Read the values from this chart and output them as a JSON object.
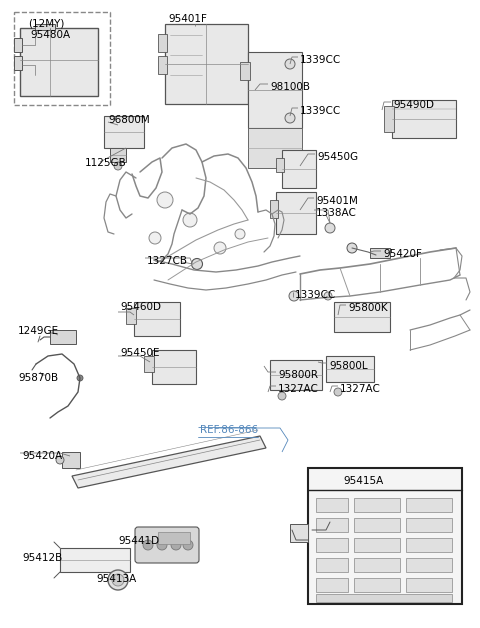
{
  "bg_color": "#ffffff",
  "fig_w": 4.8,
  "fig_h": 6.28,
  "dpi": 100,
  "labels": [
    {
      "text": "(12MY)",
      "xp": 28,
      "yp": 18,
      "fs": 7.5,
      "color": "#000000",
      "ha": "left",
      "style": "normal"
    },
    {
      "text": "95480A",
      "xp": 50,
      "yp": 30,
      "fs": 7.5,
      "color": "#000000",
      "ha": "center",
      "style": "normal"
    },
    {
      "text": "96800M",
      "xp": 108,
      "yp": 115,
      "fs": 7.5,
      "color": "#000000",
      "ha": "left",
      "style": "normal"
    },
    {
      "text": "1125GB",
      "xp": 85,
      "yp": 158,
      "fs": 7.5,
      "color": "#000000",
      "ha": "left",
      "style": "normal"
    },
    {
      "text": "95401F",
      "xp": 168,
      "yp": 14,
      "fs": 7.5,
      "color": "#000000",
      "ha": "left",
      "style": "normal"
    },
    {
      "text": "1339CC",
      "xp": 300,
      "yp": 55,
      "fs": 7.5,
      "color": "#000000",
      "ha": "left",
      "style": "normal"
    },
    {
      "text": "98100B",
      "xp": 270,
      "yp": 82,
      "fs": 7.5,
      "color": "#000000",
      "ha": "left",
      "style": "normal"
    },
    {
      "text": "1339CC",
      "xp": 300,
      "yp": 106,
      "fs": 7.5,
      "color": "#000000",
      "ha": "left",
      "style": "normal"
    },
    {
      "text": "95450G",
      "xp": 317,
      "yp": 152,
      "fs": 7.5,
      "color": "#000000",
      "ha": "left",
      "style": "normal"
    },
    {
      "text": "95490D",
      "xp": 393,
      "yp": 100,
      "fs": 7.5,
      "color": "#000000",
      "ha": "left",
      "style": "normal"
    },
    {
      "text": "95401M",
      "xp": 316,
      "yp": 196,
      "fs": 7.5,
      "color": "#000000",
      "ha": "left",
      "style": "normal"
    },
    {
      "text": "1338AC",
      "xp": 316,
      "yp": 208,
      "fs": 7.5,
      "color": "#000000",
      "ha": "left",
      "style": "normal"
    },
    {
      "text": "1327CB",
      "xp": 147,
      "yp": 256,
      "fs": 7.5,
      "color": "#000000",
      "ha": "left",
      "style": "normal"
    },
    {
      "text": "95420F",
      "xp": 383,
      "yp": 249,
      "fs": 7.5,
      "color": "#000000",
      "ha": "left",
      "style": "normal"
    },
    {
      "text": "1339CC",
      "xp": 295,
      "yp": 290,
      "fs": 7.5,
      "color": "#000000",
      "ha": "left",
      "style": "normal"
    },
    {
      "text": "95460D",
      "xp": 120,
      "yp": 302,
      "fs": 7.5,
      "color": "#000000",
      "ha": "left",
      "style": "normal"
    },
    {
      "text": "95800K",
      "xp": 348,
      "yp": 303,
      "fs": 7.5,
      "color": "#000000",
      "ha": "left",
      "style": "normal"
    },
    {
      "text": "1249GE",
      "xp": 18,
      "yp": 326,
      "fs": 7.5,
      "color": "#000000",
      "ha": "left",
      "style": "normal"
    },
    {
      "text": "95450E",
      "xp": 120,
      "yp": 348,
      "fs": 7.5,
      "color": "#000000",
      "ha": "left",
      "style": "normal"
    },
    {
      "text": "95870B",
      "xp": 18,
      "yp": 373,
      "fs": 7.5,
      "color": "#000000",
      "ha": "left",
      "style": "normal"
    },
    {
      "text": "95800R",
      "xp": 278,
      "yp": 370,
      "fs": 7.5,
      "color": "#000000",
      "ha": "left",
      "style": "normal"
    },
    {
      "text": "95800L",
      "xp": 329,
      "yp": 361,
      "fs": 7.5,
      "color": "#000000",
      "ha": "left",
      "style": "normal"
    },
    {
      "text": "1327AC",
      "xp": 278,
      "yp": 384,
      "fs": 7.5,
      "color": "#000000",
      "ha": "left",
      "style": "normal"
    },
    {
      "text": "1327AC",
      "xp": 340,
      "yp": 384,
      "fs": 7.5,
      "color": "#000000",
      "ha": "left",
      "style": "normal"
    },
    {
      "text": "REF.86-866",
      "xp": 200,
      "yp": 425,
      "fs": 7.5,
      "color": "#5588bb",
      "ha": "left",
      "style": "normal"
    },
    {
      "text": "95420A",
      "xp": 22,
      "yp": 451,
      "fs": 7.5,
      "color": "#000000",
      "ha": "left",
      "style": "normal"
    },
    {
      "text": "95415A",
      "xp": 364,
      "yp": 476,
      "fs": 7.5,
      "color": "#000000",
      "ha": "center",
      "style": "normal"
    },
    {
      "text": "95441D",
      "xp": 118,
      "yp": 536,
      "fs": 7.5,
      "color": "#000000",
      "ha": "left",
      "style": "normal"
    },
    {
      "text": "95412B",
      "xp": 22,
      "yp": 553,
      "fs": 7.5,
      "color": "#000000",
      "ha": "left",
      "style": "normal"
    },
    {
      "text": "95413A",
      "xp": 96,
      "yp": 574,
      "fs": 7.5,
      "color": "#000000",
      "ha": "left",
      "style": "normal"
    }
  ]
}
